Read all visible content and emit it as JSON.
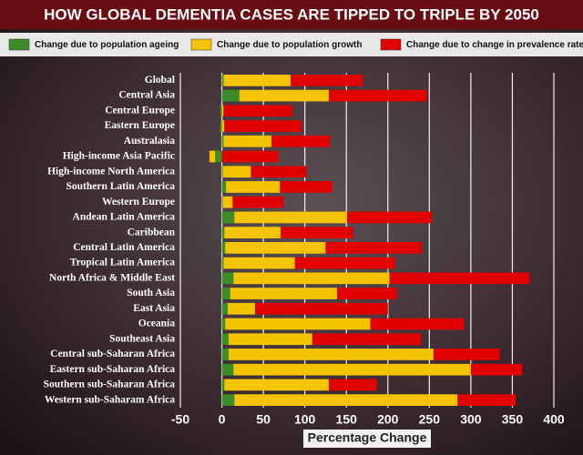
{
  "chart_data": {
    "type": "stacked-bar-horizontal",
    "title": "HOW GLOBAL DEMENTIA CASES ARE TIPPED TO TRIPLE BY 2050",
    "xlabel": "Percentage Change",
    "categories": [
      "Global",
      "Central Asia",
      "Central Europe",
      "Eastern Europe",
      "Australasia",
      "High-income Asia Pacific",
      "High-income North America",
      "Southern Latin America",
      "Western Europe",
      "Andean Latin America",
      "Caribbean",
      "Central Latin America",
      "Tropical Latin America",
      "North Africa & Middle East",
      "South Asia",
      "East Asia",
      "Oceania",
      "Southeast Asia",
      "Central sub-Saharan Africa",
      "Eastern sub-Saharan Africa",
      "Southern sub-Saharan Africa",
      "Western sub-Saharam Africa"
    ],
    "series": [
      {
        "name": "Change due to population ageing",
        "color": "#3c8c2a",
        "values": [
          2,
          21,
          -2,
          -2,
          2,
          -8,
          1,
          5,
          1,
          15,
          3,
          4,
          2,
          14,
          10,
          7,
          4,
          8,
          8,
          14,
          3,
          15
        ]
      },
      {
        "name": "Change due to population growth",
        "color": "#f5c400",
        "values": [
          81,
          108,
          2,
          3,
          58,
          -7,
          34,
          65,
          12,
          136,
          68,
          121,
          86,
          188,
          129,
          33,
          175,
          101,
          247,
          286,
          126,
          269
        ]
      },
      {
        "name": "Change due to change in prevalence rate",
        "color": "#e00000",
        "values": [
          87,
          118,
          83,
          93,
          70,
          68,
          67,
          63,
          61,
          102,
          87,
          116,
          121,
          169,
          72,
          160,
          113,
          131,
          80,
          62,
          58,
          70
        ]
      }
    ],
    "xlim": [
      -50,
      400
    ],
    "xticks": [
      -50,
      0,
      50,
      100,
      150,
      200,
      250,
      300,
      350,
      400
    ],
    "grid": true
  }
}
